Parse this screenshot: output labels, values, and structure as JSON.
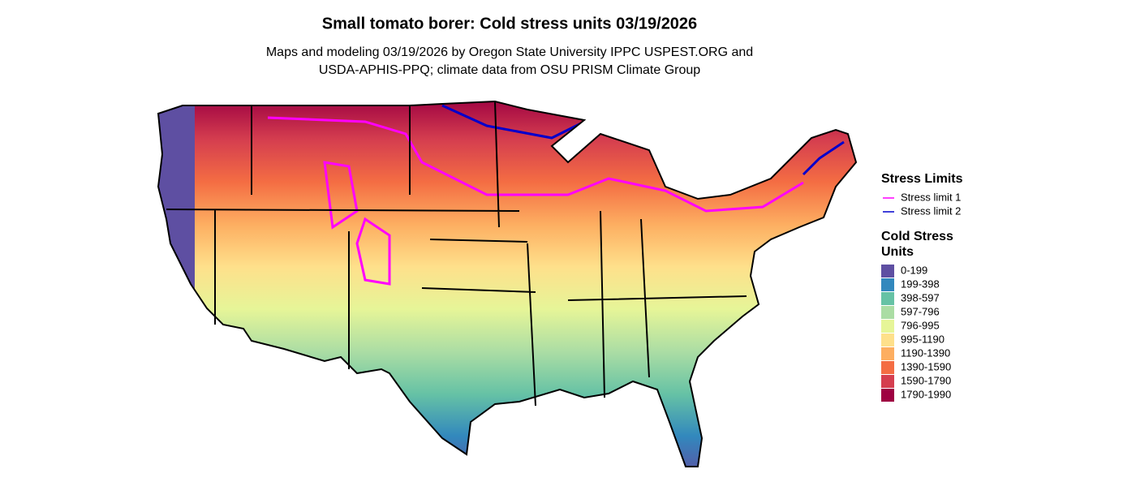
{
  "title": "Small tomato borer: Cold stress units 03/19/2026",
  "subtitle": [
    "Maps and modeling 03/19/2026 by Oregon State University IPPC USPEST.ORG and",
    "USDA-APHIS-PPQ; climate data from OSU PRISM Climate Group"
  ],
  "legend": {
    "stress_title": "Stress Limits",
    "stress_limits": [
      {
        "label": "Stress limit 1",
        "color": "#ff00ff"
      },
      {
        "label": "Stress limit 2",
        "color": "#0000cc"
      }
    ],
    "units_title": [
      "Cold Stress",
      "Units"
    ],
    "bins": [
      {
        "label": "0-199",
        "color": "#5e4fa2"
      },
      {
        "label": "199-398",
        "color": "#3288bd"
      },
      {
        "label": "398-597",
        "color": "#66c2a5"
      },
      {
        "label": "597-796",
        "color": "#abdda4"
      },
      {
        "label": "796-995",
        "color": "#e6f598"
      },
      {
        "label": "995-1190",
        "color": "#fee08b"
      },
      {
        "label": "1190-1390",
        "color": "#fdae61"
      },
      {
        "label": "1390-1590",
        "color": "#f46d43"
      },
      {
        "label": "1590-1790",
        "color": "#d53e4f"
      },
      {
        "label": "1790-1990",
        "color": "#9e0142"
      }
    ]
  }
}
